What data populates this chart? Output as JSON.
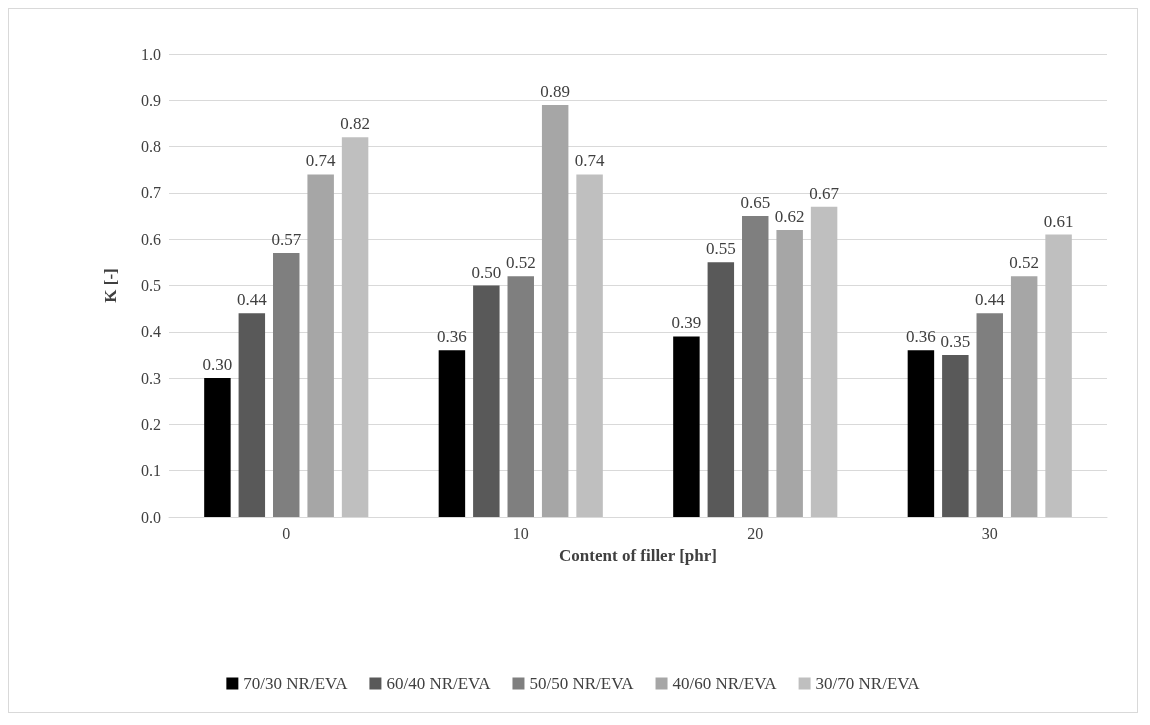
{
  "chart_data": {
    "type": "bar",
    "xlabel": "Content of filler [phr]",
    "ylabel": "K [-]",
    "categories": [
      "0",
      "10",
      "20",
      "30"
    ],
    "series": [
      {
        "name": "70/30 NR/EVA",
        "color": "#000000",
        "values": [
          0.3,
          0.36,
          0.39,
          0.36
        ],
        "value_labels": [
          "0.30",
          "0.36",
          "0.39",
          "0.36"
        ]
      },
      {
        "name": "60/40 NR/EVA",
        "color": "#595959",
        "values": [
          0.44,
          0.5,
          0.55,
          0.35
        ],
        "value_labels": [
          "0.44",
          "0.50",
          "0.55",
          "0.35"
        ]
      },
      {
        "name": "50/50 NR/EVA",
        "color": "#7f7f7f",
        "values": [
          0.57,
          0.52,
          0.65,
          0.44
        ],
        "value_labels": [
          "0.57",
          "0.52",
          "0.65",
          "0.44"
        ]
      },
      {
        "name": "40/60 NR/EVA",
        "color": "#a6a6a6",
        "values": [
          0.74,
          0.89,
          0.62,
          0.52
        ],
        "value_labels": [
          "0.74",
          "0.89",
          "0.62",
          "0.52"
        ]
      },
      {
        "name": "30/70 NR/EVA",
        "color": "#bfbfbf",
        "values": [
          0.82,
          0.74,
          0.67,
          0.61
        ],
        "value_labels": [
          "0.82",
          "0.74",
          "0.67",
          "0.61"
        ]
      }
    ],
    "ylim": [
      0,
      1
    ],
    "yticks": [
      "0.0",
      "0.1",
      "0.2",
      "0.3",
      "0.4",
      "0.5",
      "0.6",
      "0.7",
      "0.8",
      "0.9",
      "1.0"
    ],
    "grid": "y",
    "legend": "bottom"
  }
}
